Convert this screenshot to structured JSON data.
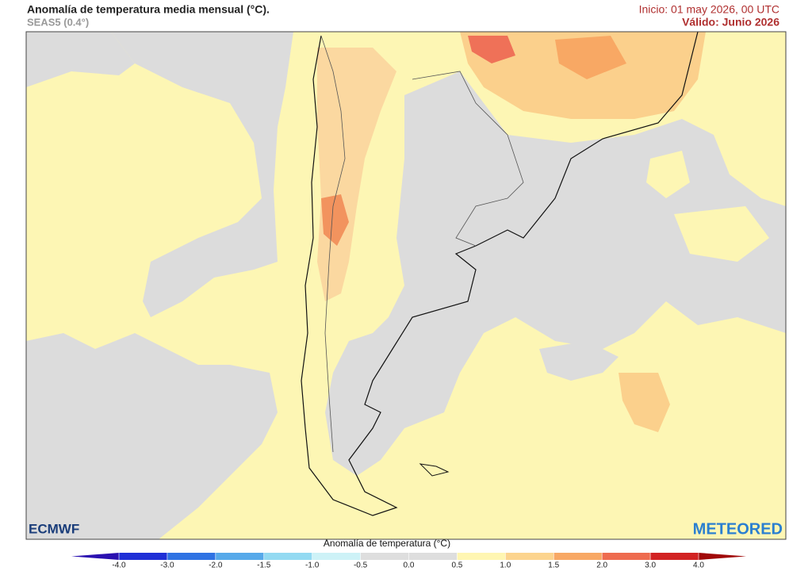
{
  "header": {
    "title": "Anomalía de temperatura media mensual (°C).",
    "subtitle": "SEAS5 (0.4°)",
    "init": "Inicio: 01 may 2026, 00 UTC",
    "valid": "Válido: Junio 2026"
  },
  "logos": {
    "left": "ECMWF",
    "right": "METEORED"
  },
  "colorbar": {
    "title": "Anomalía de temperatura (°C)",
    "ticks": [
      {
        "value": -4,
        "label": "-4.0"
      },
      {
        "value": -3,
        "label": "-3.0"
      },
      {
        "value": -2,
        "label": "-2.0"
      },
      -1.5,
      {
        "value": -1,
        "label": "-1.0"
      },
      -0.5,
      {
        "value": 0,
        "label": "0.0"
      },
      0.5,
      {
        "value": 1,
        "label": "1.0"
      },
      1.5,
      {
        "value": 2,
        "label": "2.0"
      },
      {
        "value": 3,
        "label": "3.0"
      },
      {
        "value": 4,
        "label": "4.0"
      }
    ],
    "colors": [
      "#1f2fd6",
      "#2f72e3",
      "#56a9ea",
      "#93daf2",
      "#cdf2f7",
      "#dedede",
      "#dedede",
      "#fff6b2",
      "#fcd48e",
      "#f8a864",
      "#ee6b4f",
      "#d22222"
    ],
    "low_color": "#2a10b0",
    "high_color": "#a00808"
  }
}
